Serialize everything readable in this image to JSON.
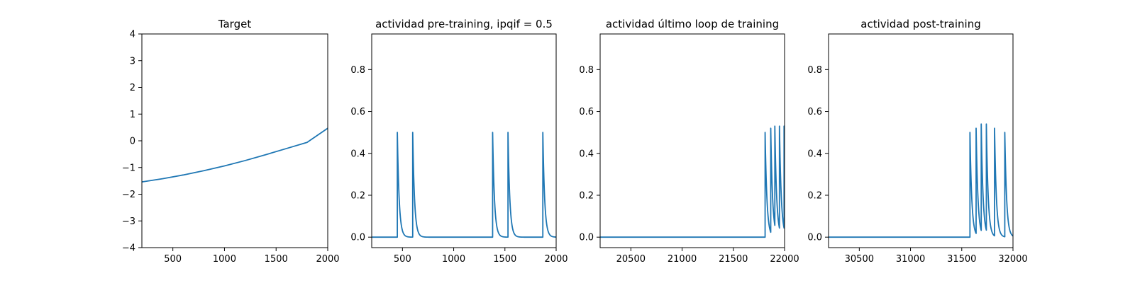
{
  "colors": {
    "series": "#1f77b4"
  },
  "chart_data": [
    {
      "type": "line",
      "title": "Target",
      "xlim": [
        200,
        2000
      ],
      "ylim": [
        -4,
        4
      ],
      "xticks": [
        500,
        1000,
        1500,
        2000
      ],
      "xtick_labels": [
        "500",
        "1000",
        "1500",
        "2000"
      ],
      "yticks": [
        -4,
        -3,
        -2,
        -1,
        0,
        1,
        2,
        3,
        4
      ],
      "ytick_labels": [
        "−4",
        "−3",
        "−2",
        "−1",
        "0",
        "1",
        "2",
        "3",
        "4"
      ],
      "grid": false,
      "series": [
        {
          "x": [
            200,
            400,
            600,
            800,
            1000,
            1200,
            1400,
            1600,
            1800,
            2000
          ],
          "y": [
            -1.54,
            -1.42,
            -1.28,
            -1.12,
            -0.94,
            -0.74,
            -0.52,
            -0.29,
            -0.06,
            0.47
          ]
        }
      ]
    },
    {
      "type": "line",
      "title": "actividad pre-training, ipqif = 0.5",
      "xlim": [
        200,
        2000
      ],
      "ylim": [
        -0.05,
        0.97
      ],
      "xticks": [
        500,
        1000,
        1500,
        2000
      ],
      "xtick_labels": [
        "500",
        "1000",
        "1500",
        "2000"
      ],
      "yticks": [
        0,
        0.2,
        0.4,
        0.6,
        0.8
      ],
      "ytick_labels": [
        "0.0",
        "0.2",
        "0.4",
        "0.6",
        "0.8"
      ],
      "grid": false,
      "spikes": {
        "baseline": 0,
        "times": [
          450,
          600,
          1380,
          1530,
          1870
        ],
        "peaks": [
          0.5,
          0.5,
          0.5,
          0.5,
          0.5
        ],
        "decay": 18
      }
    },
    {
      "type": "line",
      "title": "actividad último loop de training",
      "xlim": [
        20200,
        22000
      ],
      "ylim": [
        -0.05,
        0.97
      ],
      "xticks": [
        20500,
        21000,
        21500,
        22000
      ],
      "xtick_labels": [
        "20500",
        "21000",
        "21500",
        "22000"
      ],
      "yticks": [
        0,
        0.2,
        0.4,
        0.6,
        0.8
      ],
      "ytick_labels": [
        "0.0",
        "0.2",
        "0.4",
        "0.6",
        "0.8"
      ],
      "grid": false,
      "spikes": {
        "baseline": 0,
        "times": [
          21810,
          21865,
          21905,
          21950,
          21995
        ],
        "peaks": [
          0.5,
          0.52,
          0.53,
          0.53,
          0.53
        ],
        "decay": 18
      }
    },
    {
      "type": "line",
      "title": "actividad post-training",
      "xlim": [
        30200,
        32000
      ],
      "ylim": [
        -0.05,
        0.97
      ],
      "xticks": [
        30500,
        31000,
        31500,
        32000
      ],
      "xtick_labels": [
        "30500",
        "31000",
        "31500",
        "32000"
      ],
      "yticks": [
        0,
        0.2,
        0.4,
        0.6,
        0.8
      ],
      "ytick_labels": [
        "0.0",
        "0.2",
        "0.4",
        "0.6",
        "0.8"
      ],
      "grid": false,
      "spikes": {
        "baseline": 0,
        "times": [
          31580,
          31640,
          31690,
          31740,
          31820,
          31920
        ],
        "peaks": [
          0.5,
          0.52,
          0.54,
          0.54,
          0.52,
          0.5
        ],
        "decay": 18
      }
    }
  ]
}
